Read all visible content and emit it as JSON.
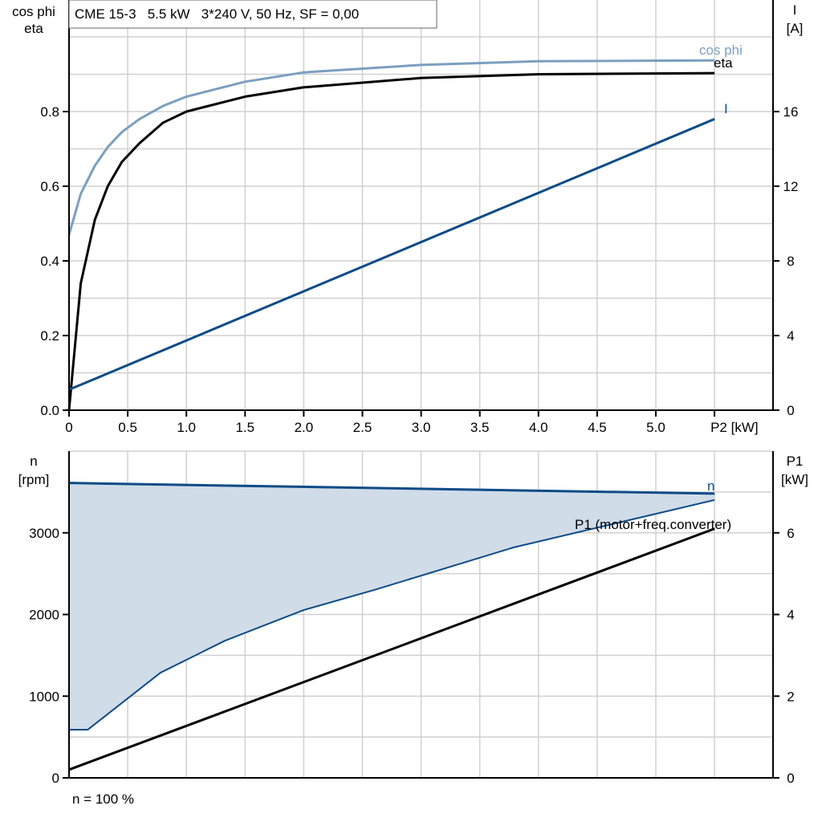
{
  "chart_data": [
    {
      "type": "line",
      "title": "CME 15-3   5.5 kW   3*240 V, 50 Hz, SF = 0,00",
      "xlabel": "P2 [kW]",
      "ylabel_left": [
        "cos phi",
        "eta"
      ],
      "ylabel_right": [
        "I",
        "[A]"
      ],
      "xlim": [
        0,
        5.5
      ],
      "ylim_left": [
        0,
        1.0
      ],
      "ylim_right": [
        0,
        20
      ],
      "xticks": [
        "0",
        "0.5",
        "1.0",
        "1.5",
        "2.0",
        "2.5",
        "3.0",
        "3.5",
        "4.0",
        "4.5",
        "5.0"
      ],
      "yticks_left": [
        "0.0",
        "0.2",
        "0.4",
        "0.6",
        "0.8"
      ],
      "yticks_right": [
        "0",
        "4",
        "8",
        "12",
        "16"
      ],
      "grid": true,
      "series": [
        {
          "name": "cos phi",
          "axis": "left",
          "color": "#7b9fc0",
          "x": [
            0,
            0.1,
            0.22,
            0.33,
            0.45,
            0.6,
            0.8,
            1.0,
            1.5,
            2.0,
            3.0,
            4.0,
            5.5
          ],
          "y": [
            0.47,
            0.58,
            0.655,
            0.705,
            0.745,
            0.78,
            0.815,
            0.84,
            0.88,
            0.905,
            0.925,
            0.935,
            0.937
          ]
        },
        {
          "name": "eta",
          "axis": "left",
          "color": "#000000",
          "x": [
            0,
            0.1,
            0.22,
            0.33,
            0.45,
            0.6,
            0.8,
            1.0,
            1.5,
            2.0,
            3.0,
            4.0,
            5.5
          ],
          "y": [
            0,
            0.34,
            0.51,
            0.6,
            0.665,
            0.715,
            0.77,
            0.8,
            0.84,
            0.865,
            0.89,
            0.9,
            0.903
          ]
        },
        {
          "name": "I",
          "axis": "right",
          "color": "#0d4b87",
          "x": [
            0,
            5.5
          ],
          "y": [
            1.1,
            15.6
          ]
        }
      ]
    },
    {
      "type": "line",
      "title": "",
      "xlabel": "",
      "ylabel_left": [
        "n",
        "[rpm]"
      ],
      "ylabel_right": [
        "P1",
        "[kW]"
      ],
      "xlim": [
        0,
        5.5
      ],
      "ylim_left": [
        0,
        4000
      ],
      "ylim_right": [
        0,
        8
      ],
      "yticks_left": [
        "0",
        "1000",
        "2000",
        "3000"
      ],
      "yticks_right": [
        "0",
        "2",
        "4",
        "6"
      ],
      "grid": true,
      "footnote": "n = 100 %",
      "series": [
        {
          "name": "n",
          "axis": "left",
          "color": "#0d4b87",
          "x": [
            0,
            5.5
          ],
          "y": [
            3610,
            3480
          ]
        },
        {
          "name": "",
          "axis": "left",
          "color": "#0d4b87",
          "role": "lower boundary of shaded range",
          "x": [
            0,
            0.16,
            0.78,
            1.33,
            2.0,
            2.6,
            3.79,
            5.5
          ],
          "y": [
            590,
            590,
            1288,
            1680,
            2055,
            2300,
            2822,
            3402
          ]
        },
        {
          "name": "P1 (motor+freq.converter)",
          "axis": "right",
          "color": "#000000",
          "x": [
            0,
            5.5
          ],
          "y": [
            0.2,
            6.1
          ]
        }
      ],
      "fill_color": "#d0dce8"
    }
  ]
}
